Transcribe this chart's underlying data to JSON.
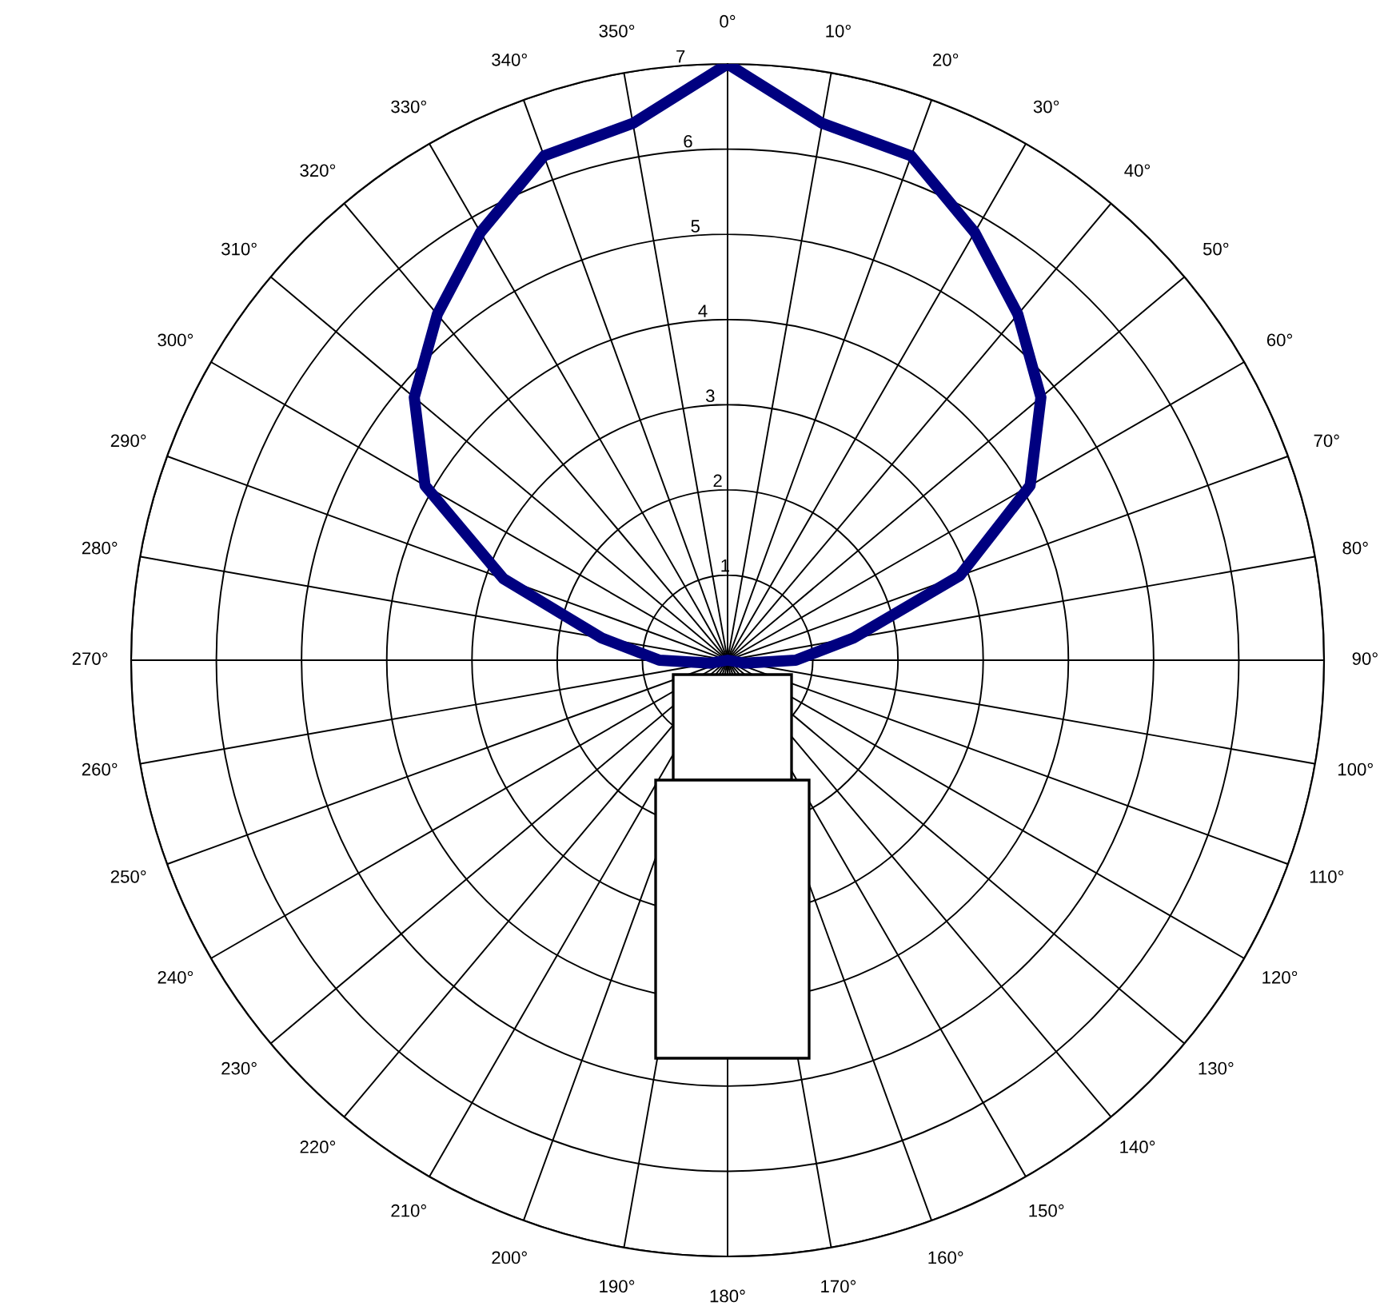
{
  "chart_data": {
    "type": "radar",
    "categories": [
      "0°",
      "10°",
      "20°",
      "30°",
      "40°",
      "50°",
      "60°",
      "70°",
      "80°",
      "90°",
      "100°",
      "110°",
      "120°",
      "130°",
      "140°",
      "150°",
      "160°",
      "170°",
      "180°",
      "190°",
      "200°",
      "210°",
      "220°",
      "230°",
      "240°",
      "250°",
      "260°",
      "270°",
      "280°",
      "290°",
      "300°",
      "310°",
      "320°",
      "330°",
      "340°",
      "350°"
    ],
    "series": [
      {
        "color": "#000080",
        "values": [
          7,
          6.4,
          6.3,
          5.8,
          5.3,
          4.8,
          4.1,
          2.9,
          1.5,
          0.8,
          0.2,
          0,
          0,
          0,
          0,
          0,
          0,
          0,
          0,
          0,
          0,
          0,
          0,
          0,
          0,
          0,
          0.2,
          0.8,
          1.5,
          2.8,
          4.1,
          4.8,
          5.3,
          5.8,
          6.3,
          6.4
        ]
      }
    ],
    "ylim": [
      0,
      7
    ],
    "yticks": [
      1,
      2,
      3,
      4,
      5,
      6,
      7
    ],
    "grid": true,
    "marker": "none",
    "line_style": "solid"
  }
}
